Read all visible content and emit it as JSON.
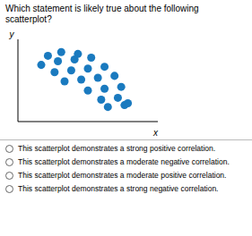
{
  "chart_data": {
    "type": "scatter",
    "title": "Which statement is likely true about the following scatterplot?",
    "x": [
      1.2,
      1.6,
      2.1,
      1.0,
      1.5,
      2.0,
      2.5,
      1.4,
      1.9,
      2.4,
      2.9,
      1.7,
      2.2,
      2.7,
      3.2,
      2.4,
      2.9,
      3.4,
      2.8,
      3.3,
      3.6,
      3.0,
      3.5
    ],
    "values": [
      5.1,
      5.3,
      5.2,
      4.6,
      4.8,
      4.9,
      5.0,
      4.2,
      4.3,
      4.4,
      4.5,
      3.7,
      3.8,
      3.9,
      4.0,
      3.2,
      3.3,
      3.4,
      2.7,
      2.8,
      2.5,
      2.3,
      2.4
    ],
    "color": "#1a7abf",
    "xlabel": "x",
    "ylabel": "y",
    "xlim": [
      0.3,
      4.5
    ],
    "ylim": [
      1.5,
      6.0
    ],
    "tick_labels": false,
    "grid": false,
    "annotations": [
      "This scatterplot demonstrates a strong positive correlation.",
      "This scatterplot demonstrates a moderate negative correlation.",
      "This scatterplot demonstrates a moderate positive correlation.",
      "This scatterplot demonstrates a strong negative correlation."
    ]
  }
}
